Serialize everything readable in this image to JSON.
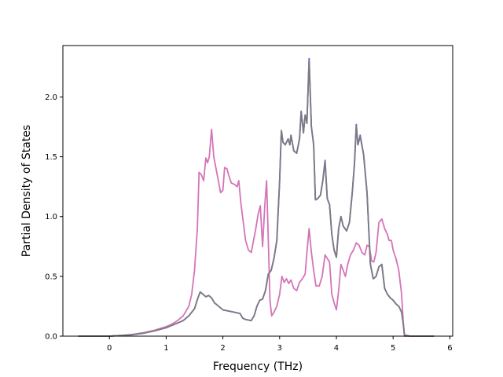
{
  "chart_data": {
    "type": "line",
    "title": "",
    "xlabel": "Frequency (THz)",
    "ylabel": "Partial Density of States",
    "xlim": [
      -0.82,
      6.05
    ],
    "ylim": [
      0.0,
      2.43
    ],
    "xticks": [
      0,
      1,
      2,
      3,
      4,
      5,
      6
    ],
    "xtick_labels": [
      "0",
      "1",
      "2",
      "3",
      "4",
      "5",
      "6"
    ],
    "yticks": [
      0.0,
      0.5,
      1.0,
      1.5,
      2.0
    ],
    "ytick_labels": [
      "0.0",
      "0.5",
      "1.0",
      "1.5",
      "2.0"
    ],
    "grid": false,
    "legend": false,
    "series": [
      {
        "color": "#5a5fd0",
        "points": [
          [
            -0.55,
            0.0
          ],
          [
            -0.2,
            0.0
          ],
          [
            0.0,
            0.0
          ],
          [
            0.2,
            0.005
          ],
          [
            0.4,
            0.012
          ],
          [
            0.6,
            0.025
          ],
          [
            0.8,
            0.045
          ],
          [
            1.0,
            0.07
          ],
          [
            1.1,
            0.09
          ],
          [
            1.2,
            0.11
          ],
          [
            1.3,
            0.13
          ],
          [
            1.4,
            0.17
          ],
          [
            1.5,
            0.23
          ],
          [
            1.56,
            0.32
          ],
          [
            1.6,
            0.37
          ],
          [
            1.65,
            0.35
          ],
          [
            1.7,
            0.33
          ],
          [
            1.75,
            0.34
          ],
          [
            1.8,
            0.32
          ],
          [
            1.85,
            0.28
          ],
          [
            1.9,
            0.26
          ],
          [
            2.0,
            0.22
          ],
          [
            2.1,
            0.21
          ],
          [
            2.2,
            0.2
          ],
          [
            2.3,
            0.19
          ],
          [
            2.35,
            0.15
          ],
          [
            2.4,
            0.14
          ],
          [
            2.5,
            0.13
          ],
          [
            2.55,
            0.17
          ],
          [
            2.6,
            0.25
          ],
          [
            2.65,
            0.3
          ],
          [
            2.7,
            0.31
          ],
          [
            2.75,
            0.38
          ],
          [
            2.8,
            0.52
          ],
          [
            2.85,
            0.55
          ],
          [
            2.9,
            0.65
          ],
          [
            2.95,
            0.8
          ],
          [
            3.0,
            1.3
          ],
          [
            3.03,
            1.72
          ],
          [
            3.06,
            1.62
          ],
          [
            3.1,
            1.6
          ],
          [
            3.15,
            1.65
          ],
          [
            3.18,
            1.6
          ],
          [
            3.2,
            1.68
          ],
          [
            3.25,
            1.55
          ],
          [
            3.3,
            1.53
          ],
          [
            3.35,
            1.65
          ],
          [
            3.38,
            1.88
          ],
          [
            3.42,
            1.7
          ],
          [
            3.45,
            1.85
          ],
          [
            3.48,
            1.78
          ],
          [
            3.52,
            2.32
          ],
          [
            3.56,
            1.75
          ],
          [
            3.6,
            1.6
          ],
          [
            3.63,
            1.14
          ],
          [
            3.67,
            1.15
          ],
          [
            3.72,
            1.18
          ],
          [
            3.76,
            1.3
          ],
          [
            3.8,
            1.47
          ],
          [
            3.84,
            1.15
          ],
          [
            3.88,
            1.1
          ],
          [
            3.92,
            0.85
          ],
          [
            3.96,
            0.72
          ],
          [
            4.0,
            0.66
          ],
          [
            4.04,
            0.9
          ],
          [
            4.08,
            1.0
          ],
          [
            4.12,
            0.92
          ],
          [
            4.18,
            0.88
          ],
          [
            4.23,
            0.95
          ],
          [
            4.28,
            1.2
          ],
          [
            4.32,
            1.45
          ],
          [
            4.35,
            1.77
          ],
          [
            4.38,
            1.6
          ],
          [
            4.42,
            1.68
          ],
          [
            4.48,
            1.52
          ],
          [
            4.54,
            1.2
          ],
          [
            4.6,
            0.6
          ],
          [
            4.65,
            0.48
          ],
          [
            4.7,
            0.5
          ],
          [
            4.75,
            0.58
          ],
          [
            4.8,
            0.6
          ],
          [
            4.85,
            0.4
          ],
          [
            4.9,
            0.35
          ],
          [
            4.95,
            0.32
          ],
          [
            5.0,
            0.3
          ],
          [
            5.05,
            0.27
          ],
          [
            5.1,
            0.25
          ],
          [
            5.15,
            0.2
          ],
          [
            5.18,
            0.1
          ],
          [
            5.2,
            0.01
          ],
          [
            5.3,
            0.0
          ],
          [
            5.72,
            0.0
          ]
        ]
      },
      {
        "color": "#d474b8",
        "points": [
          [
            -0.55,
            0.0
          ],
          [
            -0.2,
            0.0
          ],
          [
            0.0,
            0.0
          ],
          [
            0.2,
            0.006
          ],
          [
            0.4,
            0.014
          ],
          [
            0.6,
            0.028
          ],
          [
            0.8,
            0.05
          ],
          [
            1.0,
            0.08
          ],
          [
            1.1,
            0.1
          ],
          [
            1.2,
            0.13
          ],
          [
            1.3,
            0.17
          ],
          [
            1.4,
            0.25
          ],
          [
            1.45,
            0.35
          ],
          [
            1.5,
            0.55
          ],
          [
            1.55,
            0.9
          ],
          [
            1.58,
            1.37
          ],
          [
            1.62,
            1.35
          ],
          [
            1.66,
            1.3
          ],
          [
            1.7,
            1.49
          ],
          [
            1.73,
            1.45
          ],
          [
            1.76,
            1.5
          ],
          [
            1.8,
            1.73
          ],
          [
            1.84,
            1.5
          ],
          [
            1.88,
            1.4
          ],
          [
            1.92,
            1.3
          ],
          [
            1.96,
            1.2
          ],
          [
            2.0,
            1.22
          ],
          [
            2.03,
            1.41
          ],
          [
            2.07,
            1.4
          ],
          [
            2.1,
            1.35
          ],
          [
            2.15,
            1.28
          ],
          [
            2.2,
            1.27
          ],
          [
            2.25,
            1.25
          ],
          [
            2.28,
            1.3
          ],
          [
            2.32,
            1.1
          ],
          [
            2.36,
            0.95
          ],
          [
            2.4,
            0.8
          ],
          [
            2.45,
            0.72
          ],
          [
            2.5,
            0.7
          ],
          [
            2.54,
            0.8
          ],
          [
            2.58,
            0.9
          ],
          [
            2.62,
            1.02
          ],
          [
            2.66,
            1.09
          ],
          [
            2.7,
            0.75
          ],
          [
            2.74,
            1.1
          ],
          [
            2.77,
            1.3
          ],
          [
            2.8,
            0.8
          ],
          [
            2.83,
            0.3
          ],
          [
            2.86,
            0.17
          ],
          [
            2.9,
            0.2
          ],
          [
            2.95,
            0.25
          ],
          [
            3.0,
            0.35
          ],
          [
            3.04,
            0.5
          ],
          [
            3.08,
            0.45
          ],
          [
            3.12,
            0.48
          ],
          [
            3.16,
            0.44
          ],
          [
            3.2,
            0.47
          ],
          [
            3.25,
            0.4
          ],
          [
            3.3,
            0.38
          ],
          [
            3.35,
            0.45
          ],
          [
            3.4,
            0.48
          ],
          [
            3.45,
            0.52
          ],
          [
            3.48,
            0.7
          ],
          [
            3.52,
            0.9
          ],
          [
            3.56,
            0.7
          ],
          [
            3.6,
            0.55
          ],
          [
            3.64,
            0.42
          ],
          [
            3.7,
            0.42
          ],
          [
            3.75,
            0.5
          ],
          [
            3.8,
            0.68
          ],
          [
            3.84,
            0.65
          ],
          [
            3.88,
            0.62
          ],
          [
            3.92,
            0.35
          ],
          [
            3.96,
            0.28
          ],
          [
            4.0,
            0.22
          ],
          [
            4.04,
            0.38
          ],
          [
            4.08,
            0.6
          ],
          [
            4.12,
            0.55
          ],
          [
            4.16,
            0.5
          ],
          [
            4.2,
            0.6
          ],
          [
            4.25,
            0.68
          ],
          [
            4.3,
            0.72
          ],
          [
            4.35,
            0.78
          ],
          [
            4.4,
            0.76
          ],
          [
            4.45,
            0.7
          ],
          [
            4.5,
            0.68
          ],
          [
            4.54,
            0.76
          ],
          [
            4.58,
            0.75
          ],
          [
            4.62,
            0.63
          ],
          [
            4.66,
            0.62
          ],
          [
            4.7,
            0.7
          ],
          [
            4.75,
            0.95
          ],
          [
            4.8,
            0.98
          ],
          [
            4.85,
            0.9
          ],
          [
            4.9,
            0.85
          ],
          [
            4.93,
            0.8
          ],
          [
            4.97,
            0.8
          ],
          [
            5.0,
            0.72
          ],
          [
            5.05,
            0.65
          ],
          [
            5.1,
            0.55
          ],
          [
            5.15,
            0.35
          ],
          [
            5.18,
            0.1
          ],
          [
            5.2,
            0.0
          ],
          [
            5.72,
            0.0
          ]
        ]
      },
      {
        "color": "#7e7a82",
        "points": [
          [
            -0.55,
            0.0
          ],
          [
            -0.2,
            0.0
          ],
          [
            0.0,
            0.0
          ],
          [
            0.2,
            0.005
          ],
          [
            0.4,
            0.012
          ],
          [
            0.6,
            0.025
          ],
          [
            0.8,
            0.045
          ],
          [
            1.0,
            0.07
          ],
          [
            1.1,
            0.09
          ],
          [
            1.2,
            0.11
          ],
          [
            1.3,
            0.13
          ],
          [
            1.4,
            0.17
          ],
          [
            1.5,
            0.23
          ],
          [
            1.56,
            0.32
          ],
          [
            1.6,
            0.37
          ],
          [
            1.65,
            0.35
          ],
          [
            1.7,
            0.33
          ],
          [
            1.75,
            0.34
          ],
          [
            1.8,
            0.32
          ],
          [
            1.85,
            0.28
          ],
          [
            1.9,
            0.26
          ],
          [
            2.0,
            0.22
          ],
          [
            2.1,
            0.21
          ],
          [
            2.2,
            0.2
          ],
          [
            2.3,
            0.19
          ],
          [
            2.35,
            0.15
          ],
          [
            2.4,
            0.14
          ],
          [
            2.5,
            0.13
          ],
          [
            2.55,
            0.17
          ],
          [
            2.6,
            0.25
          ],
          [
            2.65,
            0.3
          ],
          [
            2.7,
            0.31
          ],
          [
            2.75,
            0.38
          ],
          [
            2.8,
            0.52
          ],
          [
            2.85,
            0.55
          ],
          [
            2.9,
            0.65
          ],
          [
            2.95,
            0.8
          ],
          [
            3.0,
            1.3
          ],
          [
            3.03,
            1.72
          ],
          [
            3.06,
            1.62
          ],
          [
            3.1,
            1.6
          ],
          [
            3.15,
            1.65
          ],
          [
            3.18,
            1.6
          ],
          [
            3.2,
            1.68
          ],
          [
            3.25,
            1.55
          ],
          [
            3.3,
            1.53
          ],
          [
            3.35,
            1.65
          ],
          [
            3.38,
            1.88
          ],
          [
            3.42,
            1.7
          ],
          [
            3.45,
            1.85
          ],
          [
            3.48,
            1.78
          ],
          [
            3.52,
            2.3
          ],
          [
            3.56,
            1.75
          ],
          [
            3.6,
            1.6
          ],
          [
            3.63,
            1.14
          ],
          [
            3.67,
            1.15
          ],
          [
            3.72,
            1.18
          ],
          [
            3.76,
            1.3
          ],
          [
            3.8,
            1.46
          ],
          [
            3.84,
            1.15
          ],
          [
            3.88,
            1.1
          ],
          [
            3.92,
            0.85
          ],
          [
            3.96,
            0.72
          ],
          [
            4.0,
            0.66
          ],
          [
            4.04,
            0.9
          ],
          [
            4.08,
            1.0
          ],
          [
            4.12,
            0.92
          ],
          [
            4.18,
            0.88
          ],
          [
            4.23,
            0.95
          ],
          [
            4.28,
            1.2
          ],
          [
            4.32,
            1.45
          ],
          [
            4.35,
            1.76
          ],
          [
            4.38,
            1.6
          ],
          [
            4.42,
            1.67
          ],
          [
            4.48,
            1.52
          ],
          [
            4.54,
            1.2
          ],
          [
            4.6,
            0.6
          ],
          [
            4.65,
            0.48
          ],
          [
            4.7,
            0.5
          ],
          [
            4.75,
            0.58
          ],
          [
            4.8,
            0.6
          ],
          [
            4.85,
            0.4
          ],
          [
            4.9,
            0.35
          ],
          [
            4.95,
            0.32
          ],
          [
            5.0,
            0.3
          ],
          [
            5.05,
            0.27
          ],
          [
            5.1,
            0.25
          ],
          [
            5.15,
            0.2
          ],
          [
            5.18,
            0.1
          ],
          [
            5.2,
            0.01
          ],
          [
            5.3,
            0.0
          ],
          [
            5.72,
            0.0
          ]
        ]
      }
    ]
  }
}
